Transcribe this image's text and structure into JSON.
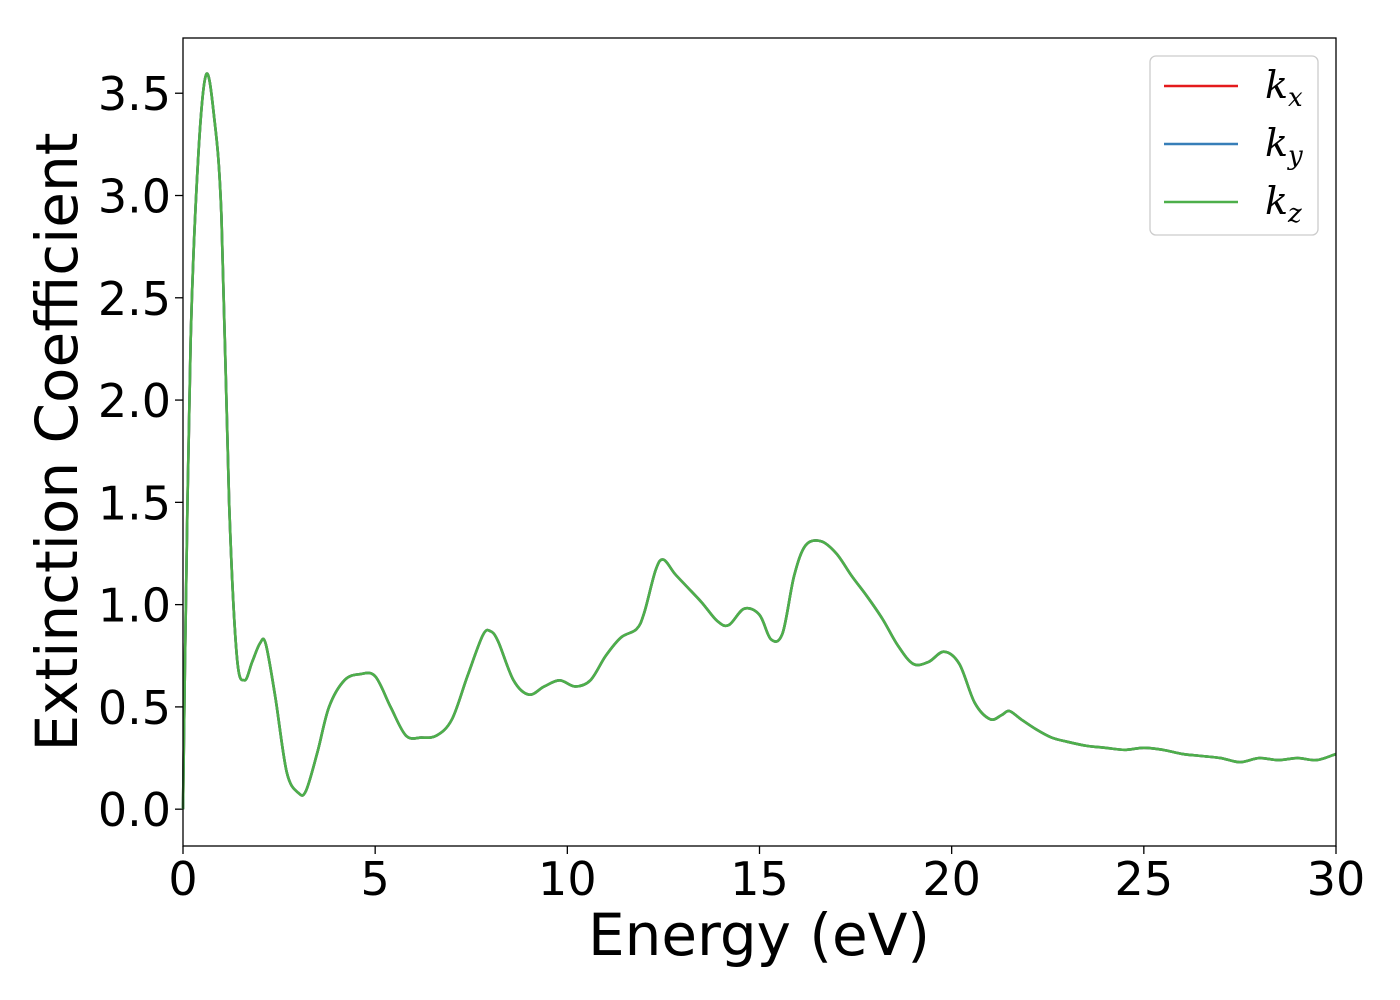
{
  "chart_data": {
    "type": "line",
    "title": "",
    "xlabel": "Energy (eV)",
    "ylabel": "Extinction Coefficient",
    "xlim": [
      0,
      30
    ],
    "ylim": [
      -0.18,
      3.77
    ],
    "xticks": [
      0,
      5,
      10,
      15,
      20,
      25,
      30
    ],
    "xtick_labels": [
      "0",
      "5",
      "10",
      "15",
      "20",
      "25",
      "30"
    ],
    "yticks": [
      0.0,
      0.5,
      1.0,
      1.5,
      2.0,
      2.5,
      3.0,
      3.5
    ],
    "ytick_labels": [
      "0.0",
      "0.5",
      "1.0",
      "1.5",
      "2.0",
      "2.5",
      "3.0",
      "3.5"
    ],
    "grid": false,
    "legend_position": "top-right",
    "series": [
      {
        "name": "k",
        "subscript": "x",
        "color": "#e41a1c"
      },
      {
        "name": "k",
        "subscript": "y",
        "color": "#377eb8"
      },
      {
        "name": "k",
        "subscript": "z",
        "color": "#4daf4a"
      }
    ],
    "x": [
      0,
      0.05,
      0.2,
      0.4,
      0.6,
      0.8,
      1.0,
      1.2,
      1.4,
      1.6,
      1.8,
      2.0,
      2.15,
      2.4,
      2.7,
      3.0,
      3.2,
      3.5,
      3.8,
      4.2,
      4.6,
      5.0,
      5.4,
      5.8,
      6.2,
      6.6,
      7.0,
      7.4,
      7.8,
      8.0,
      8.2,
      8.6,
      9.0,
      9.4,
      9.8,
      10.2,
      10.6,
      11.0,
      11.4,
      11.8,
      12.0,
      12.3,
      12.5,
      12.8,
      13.1,
      13.5,
      13.9,
      14.2,
      14.6,
      15.0,
      15.3,
      15.6,
      15.9,
      16.2,
      16.6,
      17.0,
      17.4,
      17.8,
      18.2,
      18.6,
      19.0,
      19.4,
      19.8,
      20.2,
      20.6,
      21.0,
      21.3,
      21.5,
      21.8,
      22.2,
      22.6,
      23.0,
      23.5,
      24.0,
      24.5,
      25.0,
      25.5,
      26.0,
      26.5,
      27.0,
      27.5,
      28.0,
      28.5,
      29.0,
      29.5,
      30.0
    ],
    "values": [
      0.0,
      0.7,
      2.3,
      3.2,
      3.59,
      3.4,
      2.9,
      1.5,
      0.75,
      0.63,
      0.72,
      0.81,
      0.81,
      0.55,
      0.18,
      0.08,
      0.09,
      0.28,
      0.5,
      0.63,
      0.66,
      0.65,
      0.5,
      0.36,
      0.35,
      0.36,
      0.44,
      0.65,
      0.85,
      0.87,
      0.82,
      0.63,
      0.56,
      0.6,
      0.63,
      0.6,
      0.63,
      0.75,
      0.84,
      0.88,
      0.96,
      1.17,
      1.22,
      1.15,
      1.09,
      1.01,
      0.92,
      0.9,
      0.98,
      0.95,
      0.83,
      0.86,
      1.14,
      1.29,
      1.31,
      1.25,
      1.14,
      1.04,
      0.93,
      0.8,
      0.71,
      0.72,
      0.77,
      0.71,
      0.52,
      0.44,
      0.46,
      0.48,
      0.44,
      0.39,
      0.35,
      0.33,
      0.31,
      0.3,
      0.29,
      0.3,
      0.29,
      0.27,
      0.26,
      0.25,
      0.23,
      0.25,
      0.24,
      0.25,
      0.24,
      0.27
    ]
  }
}
